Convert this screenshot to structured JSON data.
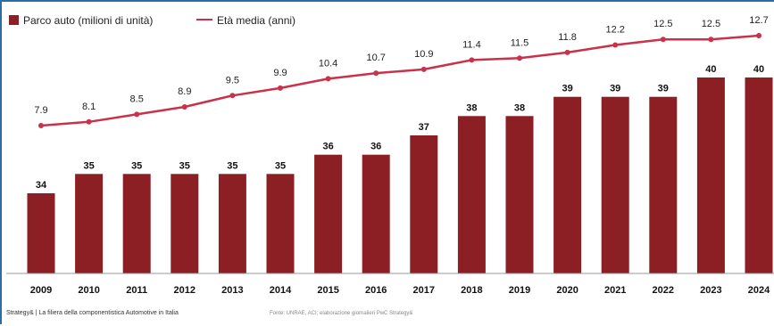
{
  "chart_data": {
    "type": "bar",
    "categories": [
      "2009",
      "2010",
      "2011",
      "2012",
      "2013",
      "2014",
      "2015",
      "2016",
      "2017",
      "2018",
      "2019",
      "2020",
      "2021",
      "2022",
      "2023",
      "2024"
    ],
    "series": [
      {
        "name": "Parco auto (milioni di unità)",
        "kind": "bar",
        "color": "#8b1f24",
        "values": [
          34,
          35,
          35,
          35,
          35,
          35,
          36,
          36,
          37,
          38,
          38,
          39,
          39,
          39,
          40,
          40
        ]
      },
      {
        "name": "Età media (anni)",
        "kind": "line",
        "color": "#c8324a",
        "values": [
          7.9,
          8.1,
          8.5,
          8.9,
          9.5,
          9.9,
          10.4,
          10.7,
          10.9,
          11.4,
          11.5,
          11.8,
          12.2,
          12.5,
          12.5,
          12.7
        ]
      }
    ],
    "legend_position": "top-left",
    "grid": false
  },
  "footer": {
    "left": "Strategy& | La filiera della componentistica Automotive in Italia",
    "right": "Fonte: UNRAE, ACI; elaborazione giornalieri PwC Strategy&"
  }
}
